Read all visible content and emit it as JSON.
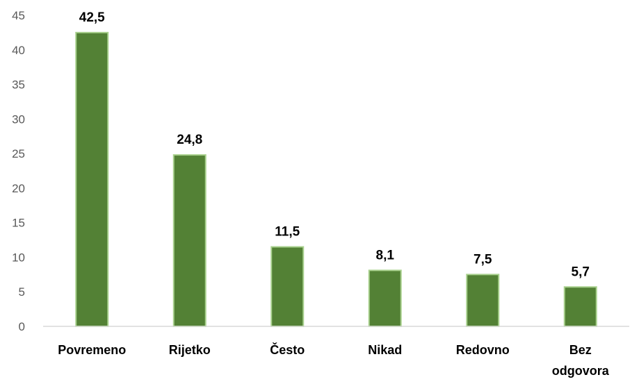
{
  "chart_data": {
    "type": "bar",
    "categories": [
      "Povremeno",
      "Rijetko",
      "Često",
      "Nikad",
      "Redovno",
      "Bez odgovora"
    ],
    "values": [
      42.5,
      24.8,
      11.5,
      8.1,
      7.5,
      5.7
    ],
    "data_labels": [
      "42,5",
      "24,8",
      "11,5",
      "8,1",
      "7,5",
      "5,7"
    ],
    "yticks": [
      "0",
      "5",
      "10",
      "15",
      "20",
      "25",
      "30",
      "35",
      "40",
      "45"
    ],
    "ylim": [
      0,
      45
    ],
    "title": "",
    "xlabel": "",
    "ylabel": "",
    "grid": false,
    "legend": "none",
    "colors": {
      "bar_fill": "#538135",
      "bar_edge": "#a9d18e",
      "axis": "#d9d9d9"
    }
  }
}
